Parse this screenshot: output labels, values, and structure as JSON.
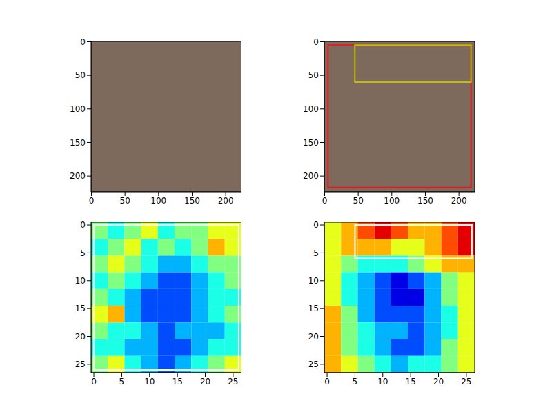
{
  "chart_data": [
    {
      "type": "image",
      "xlim": [
        -0.5,
        223.5
      ],
      "ylim": [
        223.5,
        -0.5
      ],
      "xticks": [
        0,
        50,
        100,
        150,
        200
      ],
      "yticks": [
        0,
        50,
        100,
        150,
        200
      ],
      "boxes": []
    },
    {
      "type": "image",
      "xlim": [
        -0.5,
        223.5
      ],
      "ylim": [
        223.5,
        -0.5
      ],
      "xticks": [
        0,
        50,
        100,
        150,
        200
      ],
      "yticks": [
        0,
        50,
        100,
        150,
        200
      ],
      "boxes": [
        {
          "x": [
            5,
            218
          ],
          "y": [
            5,
            217
          ],
          "color": "#e41a1c"
        },
        {
          "x": [
            45,
            218
          ],
          "y": [
            5,
            60
          ],
          "color": "#bfbf00"
        }
      ]
    },
    {
      "type": "heatmap",
      "xlim": [
        -0.5,
        26.5
      ],
      "ylim": [
        26.5,
        -0.5
      ],
      "xticks": [
        0,
        5,
        10,
        15,
        20,
        25
      ],
      "yticks": [
        0,
        5,
        10,
        15,
        20,
        25
      ],
      "clim": [
        0,
        10
      ],
      "cells": [
        [
          5,
          4,
          5,
          6,
          4,
          5,
          5,
          6,
          6
        ],
        [
          4,
          5,
          6,
          4,
          5,
          4,
          5,
          7,
          6
        ],
        [
          5,
          6,
          5,
          4,
          3,
          3,
          4,
          5,
          5
        ],
        [
          4,
          5,
          4,
          3,
          2,
          2,
          3,
          4,
          5
        ],
        [
          5,
          4,
          3,
          2,
          2,
          2,
          3,
          4,
          4
        ],
        [
          6,
          7,
          3,
          2,
          2,
          2,
          3,
          4,
          5
        ],
        [
          5,
          4,
          4,
          3,
          2,
          3,
          3,
          3,
          4
        ],
        [
          4,
          4,
          3,
          3,
          2,
          2,
          3,
          4,
          4
        ],
        [
          5,
          6,
          4,
          3,
          2,
          3,
          4,
          5,
          6
        ]
      ],
      "boxes": [
        {
          "x": [
            0,
            26
          ],
          "y": [
            0,
            26
          ],
          "color": "#ffffff"
        }
      ]
    },
    {
      "type": "heatmap",
      "xlim": [
        -0.5,
        26.5
      ],
      "ylim": [
        26.5,
        -0.5
      ],
      "xticks": [
        0,
        5,
        10,
        15,
        20,
        25
      ],
      "yticks": [
        0,
        5,
        10,
        15,
        20,
        25
      ],
      "clim": [
        0,
        10
      ],
      "cells": [
        [
          6,
          7,
          8,
          9,
          8,
          7,
          7,
          8,
          9
        ],
        [
          6,
          7,
          7,
          7,
          6,
          6,
          7,
          8,
          9
        ],
        [
          6,
          5,
          4,
          4,
          4,
          5,
          6,
          7,
          7
        ],
        [
          6,
          4,
          3,
          2,
          1,
          2,
          3,
          5,
          6
        ],
        [
          6,
          4,
          3,
          2,
          1,
          1,
          3,
          5,
          6
        ],
        [
          7,
          5,
          3,
          2,
          2,
          2,
          3,
          4,
          6
        ],
        [
          7,
          5,
          4,
          3,
          3,
          2,
          3,
          4,
          6
        ],
        [
          7,
          5,
          4,
          3,
          2,
          2,
          3,
          5,
          6
        ],
        [
          7,
          6,
          5,
          4,
          3,
          4,
          4,
          5,
          6
        ]
      ],
      "boxes": [
        {
          "x": [
            5,
            26
          ],
          "y": [
            0,
            6
          ],
          "color": "#ffffff"
        }
      ]
    }
  ]
}
